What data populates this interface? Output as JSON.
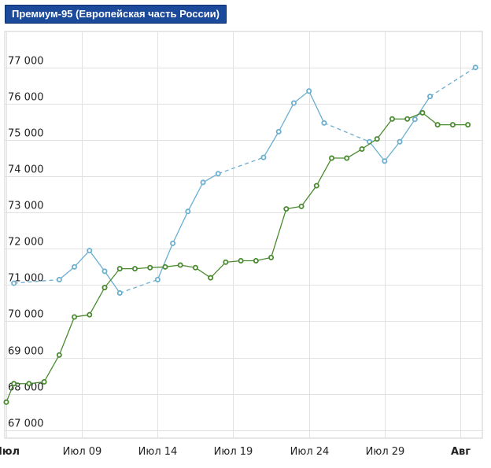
{
  "header": {
    "title": "Премиум-95 (Европейская часть России)"
  },
  "chart_data": {
    "type": "line",
    "title": "Премиум-95 (Европейская часть России)",
    "xlabel": "",
    "ylabel": "",
    "ylim": [
      66800,
      78000
    ],
    "grid": true,
    "legend": "none",
    "y_ticks": [
      67000,
      68000,
      69000,
      70000,
      71000,
      72000,
      73000,
      74000,
      75000,
      76000,
      77000
    ],
    "y_tick_labels": [
      "67 000",
      "68 000",
      "69 000",
      "70 000",
      "71 000",
      "72 000",
      "73 000",
      "74 000",
      "75 000",
      "76 000",
      "77 000"
    ],
    "x_ticks": [
      {
        "day": 4,
        "label": "Июл",
        "bold": true
      },
      {
        "day": 9,
        "label": "Июл 09",
        "bold": false
      },
      {
        "day": 14,
        "label": "Июл 14",
        "bold": false
      },
      {
        "day": 19,
        "label": "Июл 19",
        "bold": false
      },
      {
        "day": 24,
        "label": "Июл 24",
        "bold": false
      },
      {
        "day": 29,
        "label": "Июл 29",
        "bold": false
      },
      {
        "day": 34,
        "label": "Авг",
        "bold": true
      }
    ],
    "xlim": [
      4,
      35.3
    ],
    "series": [
      {
        "color": "#6aaed0",
        "points": [
          {
            "x": 4.5,
            "y": 71050
          },
          {
            "x": 7.5,
            "y": 71150
          },
          {
            "x": 8.5,
            "y": 71500
          },
          {
            "x": 9.5,
            "y": 71950
          },
          {
            "x": 10.5,
            "y": 71380
          },
          {
            "x": 11.5,
            "y": 70780
          },
          {
            "x": 14.0,
            "y": 71150
          },
          {
            "x": 15.0,
            "y": 72150
          },
          {
            "x": 16.0,
            "y": 73030
          },
          {
            "x": 17.0,
            "y": 73830
          },
          {
            "x": 18.0,
            "y": 74070
          },
          {
            "x": 21.0,
            "y": 74520
          },
          {
            "x": 22.0,
            "y": 75230
          },
          {
            "x": 23.0,
            "y": 76020
          },
          {
            "x": 24.0,
            "y": 76350
          },
          {
            "x": 25.0,
            "y": 75470
          },
          {
            "x": 28.0,
            "y": 74950
          },
          {
            "x": 29.0,
            "y": 74420
          },
          {
            "x": 30.0,
            "y": 74950
          },
          {
            "x": 31.0,
            "y": 75570
          },
          {
            "x": 32.0,
            "y": 76200
          },
          {
            "x": 35.0,
            "y": 77000
          }
        ]
      },
      {
        "color": "#4a8a2f",
        "points": [
          {
            "x": 4.0,
            "y": 67770
          },
          {
            "x": 4.5,
            "y": 68280
          },
          {
            "x": 5.5,
            "y": 68280
          },
          {
            "x": 6.5,
            "y": 68330
          },
          {
            "x": 7.5,
            "y": 69070
          },
          {
            "x": 8.5,
            "y": 70120
          },
          {
            "x": 9.5,
            "y": 70180
          },
          {
            "x": 10.5,
            "y": 70930
          },
          {
            "x": 11.5,
            "y": 71450
          },
          {
            "x": 12.5,
            "y": 71450
          },
          {
            "x": 13.5,
            "y": 71480
          },
          {
            "x": 14.5,
            "y": 71500
          },
          {
            "x": 15.5,
            "y": 71550
          },
          {
            "x": 16.5,
            "y": 71480
          },
          {
            "x": 17.5,
            "y": 71200
          },
          {
            "x": 18.5,
            "y": 71630
          },
          {
            "x": 19.5,
            "y": 71670
          },
          {
            "x": 20.5,
            "y": 71670
          },
          {
            "x": 21.5,
            "y": 71760
          },
          {
            "x": 22.5,
            "y": 73100
          },
          {
            "x": 23.5,
            "y": 73170
          },
          {
            "x": 24.5,
            "y": 73740
          },
          {
            "x": 25.5,
            "y": 74500
          },
          {
            "x": 26.5,
            "y": 74500
          },
          {
            "x": 27.5,
            "y": 74750
          },
          {
            "x": 28.5,
            "y": 75030
          },
          {
            "x": 29.5,
            "y": 75580
          },
          {
            "x": 30.5,
            "y": 75580
          },
          {
            "x": 31.5,
            "y": 75750
          },
          {
            "x": 32.5,
            "y": 75420
          },
          {
            "x": 33.5,
            "y": 75420
          },
          {
            "x": 34.5,
            "y": 75420
          }
        ]
      }
    ]
  }
}
